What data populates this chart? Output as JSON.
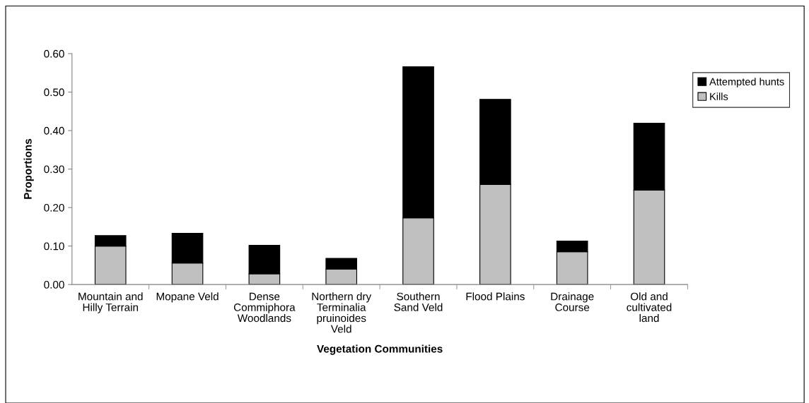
{
  "chart_data": {
    "type": "bar",
    "stacked": true,
    "xlabel": "Vegetation Communities",
    "ylabel": "Proportions",
    "categories": [
      "Mountain and\nHilly Terrain",
      "Mopane Veld",
      "Dense\nCommiphora\nWoodlands",
      "Northern dry\nTerminalia\npruinoides\nVeld",
      "Southern\nSand Veld",
      "Flood Plains",
      "Drainage\nCourse",
      "Old and\ncultivated\nland"
    ],
    "series": [
      {
        "name": "Kills",
        "color": "#c0c0c0",
        "values": [
          0.1,
          0.056,
          0.028,
          0.04,
          0.173,
          0.26,
          0.085,
          0.245
        ]
      },
      {
        "name": "Attempted hunts",
        "color": "#000000",
        "values": [
          0.027,
          0.077,
          0.074,
          0.028,
          0.393,
          0.221,
          0.028,
          0.174
        ]
      }
    ],
    "ylim": [
      0,
      0.6
    ],
    "yticks": [
      {
        "value": 0,
        "label": "0.00"
      },
      {
        "value": 0.1,
        "label": "0.10"
      },
      {
        "value": 0.2,
        "label": "0.20"
      },
      {
        "value": 0.3,
        "label": "0.30"
      },
      {
        "value": 0.4,
        "label": "0.40"
      },
      {
        "value": 0.5,
        "label": "0.50"
      },
      {
        "value": 0.6,
        "label": "0.60"
      }
    ],
    "grid": false,
    "legend": "top right"
  }
}
